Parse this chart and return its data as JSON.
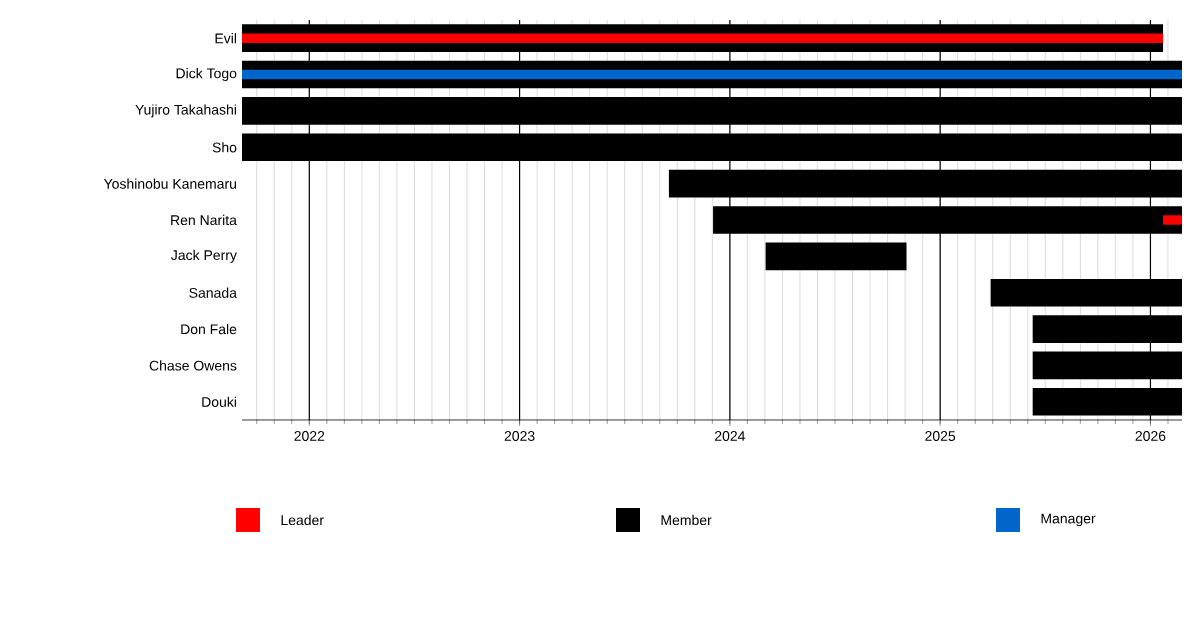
{
  "chart_data": {
    "type": "bar",
    "orientation": "horizontal",
    "categories": [
      "Evil",
      "Dick Togo",
      "Yujiro Takahashi",
      "Sho",
      "Yoshinobu Kanemaru",
      "Ren Narita",
      "Jack Perry",
      "Sanada",
      "Don Fale",
      "Chase Owens",
      "Douki"
    ],
    "series": [
      {
        "name": "Leader",
        "color": "#ff0000",
        "base": [
          2021.68,
          null,
          null,
          null,
          null,
          2026.06,
          null,
          null,
          null,
          null,
          null
        ],
        "values": [
          4.38,
          null,
          null,
          null,
          null,
          0.09,
          null,
          null,
          null,
          null,
          null
        ]
      },
      {
        "name": "Member",
        "color": "#000000",
        "base": [
          2021.68,
          2021.68,
          2021.68,
          2021.68,
          2023.71,
          2023.92,
          2024.17,
          2025.24,
          2025.44,
          2025.44,
          2025.44
        ],
        "values": [
          4.38,
          4.47,
          4.47,
          4.47,
          2.44,
          2.23,
          0.67,
          0.91,
          0.71,
          0.71,
          0.71
        ]
      },
      {
        "name": "Manager",
        "color": "#0066cc",
        "base": [
          null,
          2021.68,
          null,
          null,
          null,
          null,
          null,
          null,
          null,
          null,
          null
        ],
        "values": [
          null,
          4.47,
          null,
          null,
          null,
          null,
          null,
          null,
          null,
          null,
          null
        ]
      }
    ],
    "xlim": [
      2021.68,
      2026.15
    ],
    "xticks": [
      2022,
      2023,
      2024,
      2025,
      2026
    ],
    "grid": "x",
    "legend": "bottom"
  }
}
